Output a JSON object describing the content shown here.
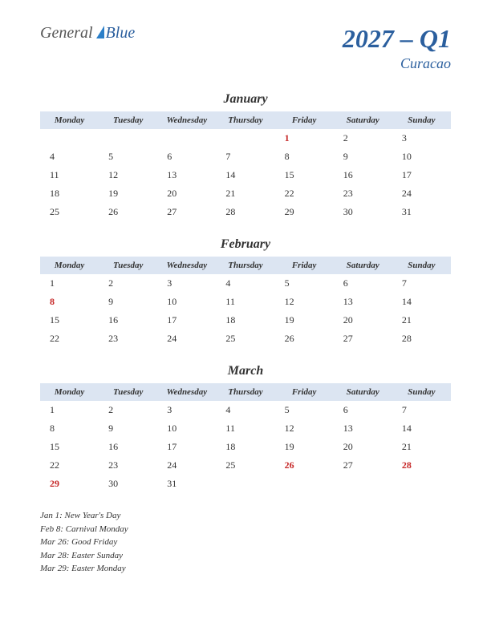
{
  "logo": {
    "general": "General",
    "blue": "Blue"
  },
  "title": {
    "main": "2027 – Q1",
    "sub": "Curacao"
  },
  "dayHeaders": [
    "Monday",
    "Tuesday",
    "Wednesday",
    "Thursday",
    "Friday",
    "Saturday",
    "Sunday"
  ],
  "months": [
    {
      "name": "January",
      "weeks": [
        [
          {
            "d": ""
          },
          {
            "d": ""
          },
          {
            "d": ""
          },
          {
            "d": ""
          },
          {
            "d": "1",
            "h": true
          },
          {
            "d": "2"
          },
          {
            "d": "3"
          }
        ],
        [
          {
            "d": "4"
          },
          {
            "d": "5"
          },
          {
            "d": "6"
          },
          {
            "d": "7"
          },
          {
            "d": "8"
          },
          {
            "d": "9"
          },
          {
            "d": "10"
          }
        ],
        [
          {
            "d": "11"
          },
          {
            "d": "12"
          },
          {
            "d": "13"
          },
          {
            "d": "14"
          },
          {
            "d": "15"
          },
          {
            "d": "16"
          },
          {
            "d": "17"
          }
        ],
        [
          {
            "d": "18"
          },
          {
            "d": "19"
          },
          {
            "d": "20"
          },
          {
            "d": "21"
          },
          {
            "d": "22"
          },
          {
            "d": "23"
          },
          {
            "d": "24"
          }
        ],
        [
          {
            "d": "25"
          },
          {
            "d": "26"
          },
          {
            "d": "27"
          },
          {
            "d": "28"
          },
          {
            "d": "29"
          },
          {
            "d": "30"
          },
          {
            "d": "31"
          }
        ]
      ]
    },
    {
      "name": "February",
      "weeks": [
        [
          {
            "d": "1"
          },
          {
            "d": "2"
          },
          {
            "d": "3"
          },
          {
            "d": "4"
          },
          {
            "d": "5"
          },
          {
            "d": "6"
          },
          {
            "d": "7"
          }
        ],
        [
          {
            "d": "8",
            "h": true
          },
          {
            "d": "9"
          },
          {
            "d": "10"
          },
          {
            "d": "11"
          },
          {
            "d": "12"
          },
          {
            "d": "13"
          },
          {
            "d": "14"
          }
        ],
        [
          {
            "d": "15"
          },
          {
            "d": "16"
          },
          {
            "d": "17"
          },
          {
            "d": "18"
          },
          {
            "d": "19"
          },
          {
            "d": "20"
          },
          {
            "d": "21"
          }
        ],
        [
          {
            "d": "22"
          },
          {
            "d": "23"
          },
          {
            "d": "24"
          },
          {
            "d": "25"
          },
          {
            "d": "26"
          },
          {
            "d": "27"
          },
          {
            "d": "28"
          }
        ]
      ]
    },
    {
      "name": "March",
      "weeks": [
        [
          {
            "d": "1"
          },
          {
            "d": "2"
          },
          {
            "d": "3"
          },
          {
            "d": "4"
          },
          {
            "d": "5"
          },
          {
            "d": "6"
          },
          {
            "d": "7"
          }
        ],
        [
          {
            "d": "8"
          },
          {
            "d": "9"
          },
          {
            "d": "10"
          },
          {
            "d": "11"
          },
          {
            "d": "12"
          },
          {
            "d": "13"
          },
          {
            "d": "14"
          }
        ],
        [
          {
            "d": "15"
          },
          {
            "d": "16"
          },
          {
            "d": "17"
          },
          {
            "d": "18"
          },
          {
            "d": "19"
          },
          {
            "d": "20"
          },
          {
            "d": "21"
          }
        ],
        [
          {
            "d": "22"
          },
          {
            "d": "23"
          },
          {
            "d": "24"
          },
          {
            "d": "25"
          },
          {
            "d": "26",
            "h": true
          },
          {
            "d": "27"
          },
          {
            "d": "28",
            "h": true
          }
        ],
        [
          {
            "d": "29",
            "h": true
          },
          {
            "d": "30"
          },
          {
            "d": "31"
          },
          {
            "d": ""
          },
          {
            "d": ""
          },
          {
            "d": ""
          },
          {
            "d": ""
          }
        ]
      ]
    }
  ],
  "holidays": [
    "Jan 1: New Year's Day",
    "Feb 8: Carnival Monday",
    "Mar 26: Good Friday",
    "Mar 28: Easter Sunday",
    "Mar 29: Easter Monday"
  ],
  "colors": {
    "header_bg": "#dce5f2",
    "title_color": "#2b5f9e",
    "holiday_color": "#c62828",
    "text_color": "#333333"
  }
}
